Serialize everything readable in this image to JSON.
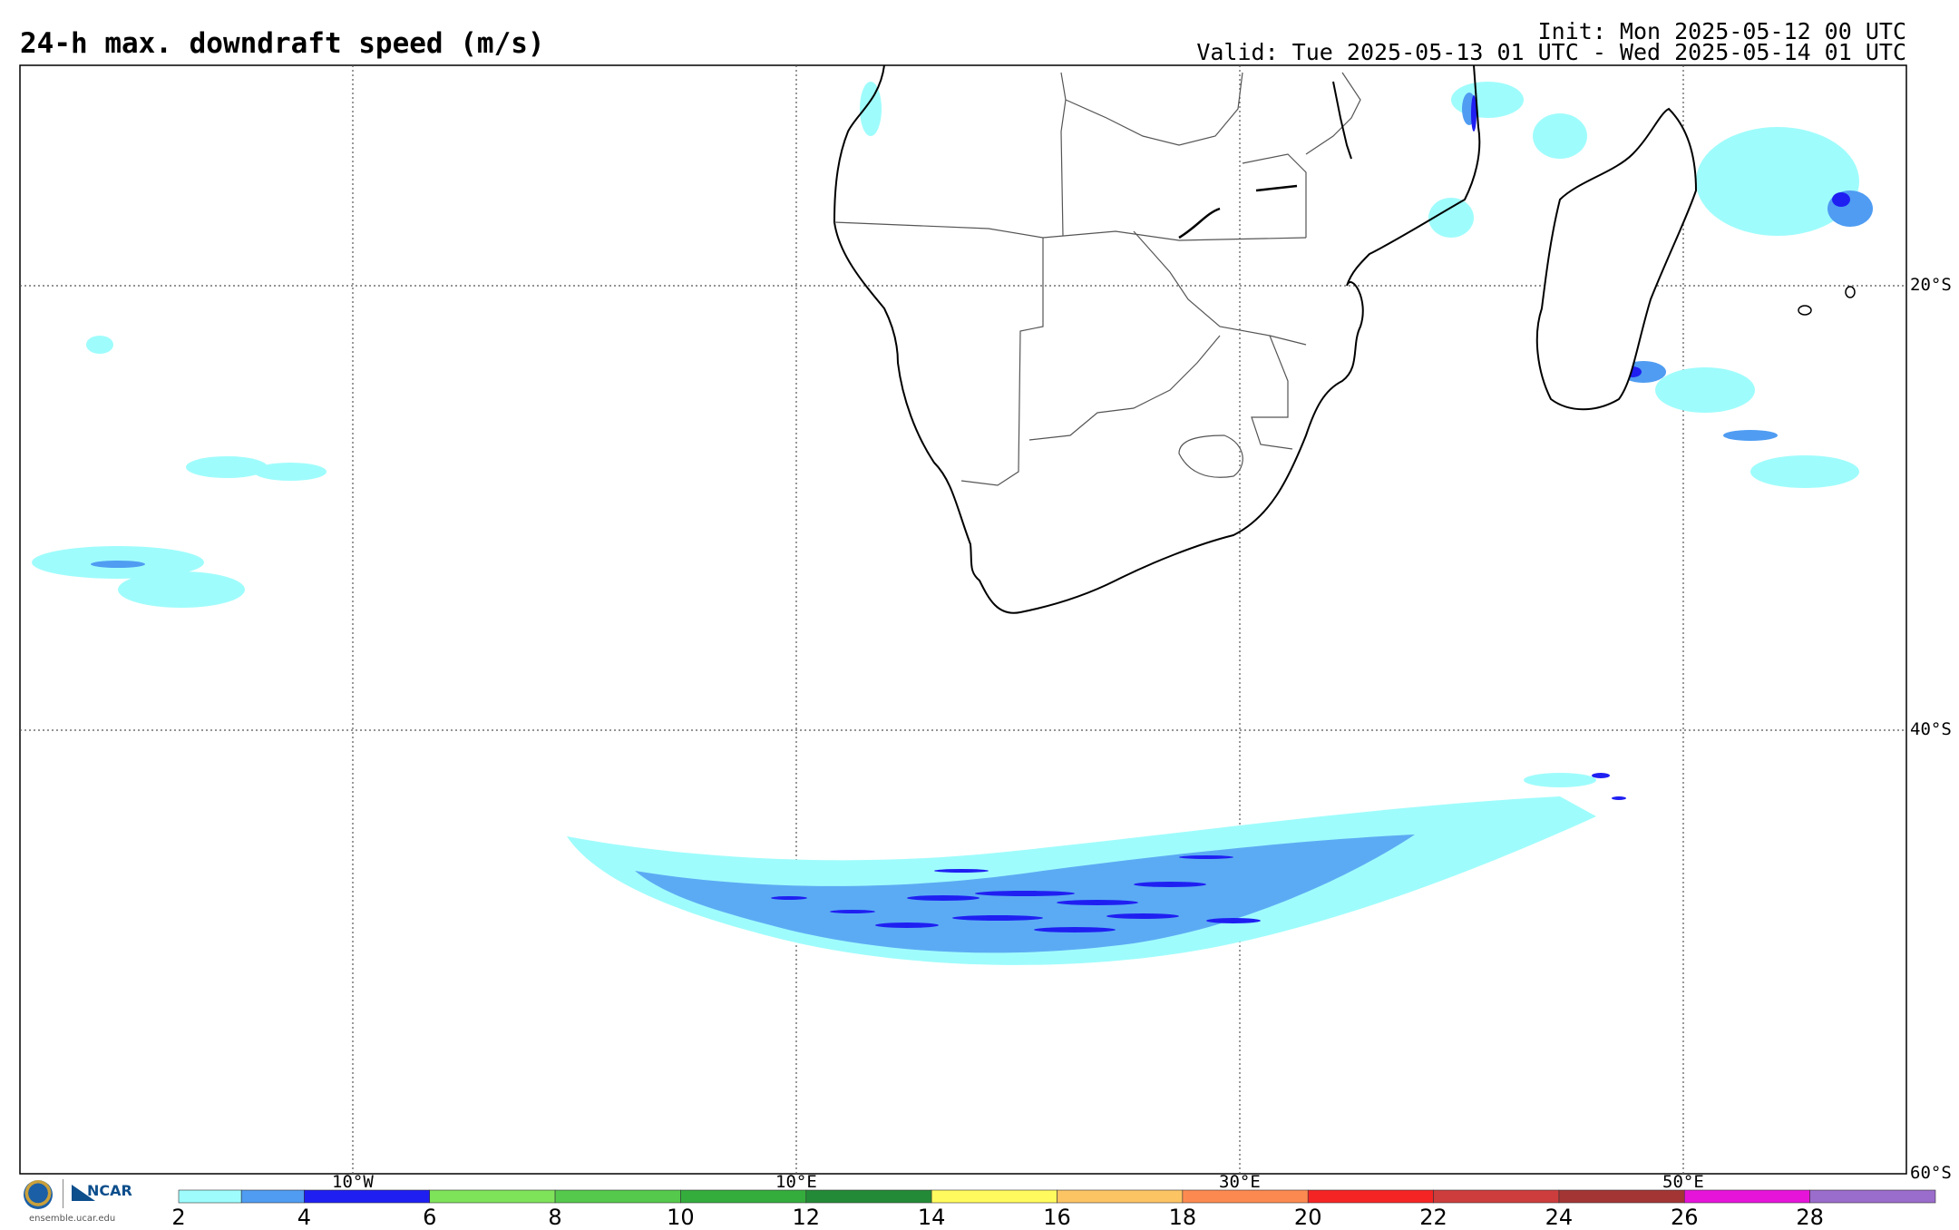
{
  "header": {
    "title": "24-h max. downdraft speed (m/s)",
    "init": "Init: Mon 2025-05-12 00 UTC",
    "valid": "Valid: Tue 2025-05-13 01 UTC - Wed 2025-05-14 01 UTC"
  },
  "map": {
    "lon_labels": [
      "10°W",
      "10°E",
      "30°E",
      "50°E"
    ],
    "lat_labels": [
      "20°S",
      "40°S",
      "60°S"
    ],
    "gridlines": "dotted",
    "land_color": "#ffffff",
    "outline_color": "#000000"
  },
  "colorbar": {
    "tick_labels": [
      "2",
      "4",
      "6",
      "8",
      "10",
      "12",
      "14",
      "16",
      "18",
      "20",
      "22",
      "24",
      "26",
      "28"
    ],
    "bins": [
      {
        "min": 2,
        "max": 3,
        "color": "#9ffcfc"
      },
      {
        "min": 3,
        "max": 4,
        "color": "#4f9cf2"
      },
      {
        "min": 4,
        "max": 6,
        "color": "#1f1ff2"
      },
      {
        "min": 6,
        "max": 8,
        "color": "#7fe35a"
      },
      {
        "min": 8,
        "max": 10,
        "color": "#55c94c"
      },
      {
        "min": 10,
        "max": 12,
        "color": "#34ad3d"
      },
      {
        "min": 12,
        "max": 14,
        "color": "#238a37"
      },
      {
        "min": 14,
        "max": 16,
        "color": "#fffb5e"
      },
      {
        "min": 16,
        "max": 18,
        "color": "#fdc463"
      },
      {
        "min": 18,
        "max": 20,
        "color": "#fc8a50"
      },
      {
        "min": 20,
        "max": 22,
        "color": "#f52424"
      },
      {
        "min": 22,
        "max": 24,
        "color": "#cd3d3d"
      },
      {
        "min": 24,
        "max": 26,
        "color": "#a33535"
      },
      {
        "min": 26,
        "max": 28,
        "color": "#e614d9"
      },
      {
        "min": 28,
        "max": 30,
        "color": "#9a6ccc"
      }
    ]
  },
  "logos": {
    "org": "NCAR",
    "site": "ensemble.ucar.edu"
  }
}
